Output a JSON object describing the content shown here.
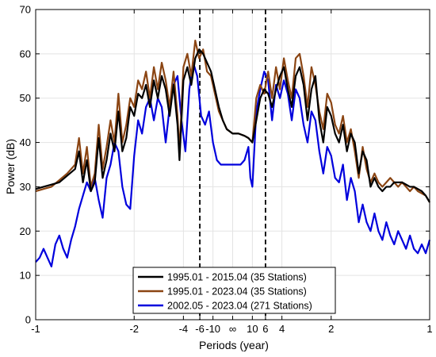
{
  "chart_data": {
    "type": "line",
    "title": "",
    "xlabel": "Periods (year)",
    "ylabel": "Power (dB)",
    "ylim": [
      0,
      70
    ],
    "yticks": [
      0,
      10,
      20,
      30,
      40,
      50,
      60,
      70
    ],
    "xlim": [
      -1,
      1
    ],
    "x_axis_scale": "frequency (1 / period in cycles per year); tick labels show the period",
    "xticks": [
      {
        "value": -1,
        "label": "-1"
      },
      {
        "value": -0.5,
        "label": "-2"
      },
      {
        "value": -0.25,
        "label": "-4"
      },
      {
        "value": -0.1667,
        "label": "-6"
      },
      {
        "value": -0.1,
        "label": "-10"
      },
      {
        "value": 0,
        "label": "∞"
      },
      {
        "value": 0.1,
        "label": "10"
      },
      {
        "value": 0.1667,
        "label": "6"
      },
      {
        "value": 0.25,
        "label": "4"
      },
      {
        "value": 0.5,
        "label": "2"
      },
      {
        "value": 1,
        "label": "1"
      }
    ],
    "grid": true,
    "reference_lines": [
      {
        "x": -0.1667,
        "style": "dashed",
        "color": "#000000"
      },
      {
        "x": 0.1667,
        "style": "dashed",
        "color": "#000000"
      }
    ],
    "legend": {
      "position": "bottom-center",
      "entries": [
        {
          "label": "1995.01 - 2015.04 (35 Stations)",
          "color": "#000000"
        },
        {
          "label": "1995.01 - 2023.04 (35 Stations)",
          "color": "#8b4513"
        },
        {
          "label": "2002.05 - 2023.04 (271 Stations)",
          "color": "#0000dd"
        }
      ]
    },
    "series": [
      {
        "name": "1995.01 - 2015.04 (35 Stations)",
        "color": "#000000",
        "points": [
          [
            -1,
            29.5
          ],
          [
            -0.96,
            30
          ],
          [
            -0.92,
            30.5
          ],
          [
            -0.88,
            31
          ],
          [
            -0.84,
            32.5
          ],
          [
            -0.8,
            34
          ],
          [
            -0.78,
            38
          ],
          [
            -0.76,
            31
          ],
          [
            -0.74,
            36
          ],
          [
            -0.72,
            29
          ],
          [
            -0.7,
            31
          ],
          [
            -0.68,
            41
          ],
          [
            -0.66,
            32
          ],
          [
            -0.64,
            36
          ],
          [
            -0.62,
            42
          ],
          [
            -0.6,
            38
          ],
          [
            -0.58,
            47
          ],
          [
            -0.56,
            38
          ],
          [
            -0.54,
            41
          ],
          [
            -0.52,
            48
          ],
          [
            -0.5,
            46
          ],
          [
            -0.48,
            51
          ],
          [
            -0.46,
            50
          ],
          [
            -0.44,
            53
          ],
          [
            -0.42,
            48
          ],
          [
            -0.4,
            54
          ],
          [
            -0.38,
            50
          ],
          [
            -0.36,
            55
          ],
          [
            -0.34,
            52
          ],
          [
            -0.32,
            46
          ],
          [
            -0.3,
            53
          ],
          [
            -0.28,
            44
          ],
          [
            -0.27,
            36
          ],
          [
            -0.25,
            54
          ],
          [
            -0.23,
            57
          ],
          [
            -0.21,
            53
          ],
          [
            -0.19,
            59
          ],
          [
            -0.17,
            61
          ],
          [
            -0.15,
            60
          ],
          [
            -0.13,
            58
          ],
          [
            -0.11,
            56
          ],
          [
            -0.09,
            52
          ],
          [
            -0.07,
            48
          ],
          [
            -0.05,
            45
          ],
          [
            -0.03,
            43
          ],
          [
            0,
            42
          ],
          [
            0.03,
            42
          ],
          [
            0.06,
            41.5
          ],
          [
            0.08,
            41
          ],
          [
            0.1,
            40
          ],
          [
            0.12,
            45
          ],
          [
            0.14,
            50
          ],
          [
            0.16,
            52
          ],
          [
            0.18,
            51
          ],
          [
            0.2,
            48
          ],
          [
            0.22,
            52
          ],
          [
            0.24,
            55
          ],
          [
            0.26,
            57
          ],
          [
            0.28,
            52
          ],
          [
            0.3,
            48
          ],
          [
            0.32,
            55
          ],
          [
            0.34,
            57
          ],
          [
            0.36,
            53
          ],
          [
            0.38,
            45
          ],
          [
            0.4,
            52
          ],
          [
            0.42,
            55
          ],
          [
            0.44,
            45
          ],
          [
            0.46,
            40
          ],
          [
            0.48,
            48
          ],
          [
            0.5,
            46
          ],
          [
            0.52,
            42
          ],
          [
            0.54,
            40
          ],
          [
            0.56,
            44
          ],
          [
            0.58,
            38
          ],
          [
            0.6,
            42
          ],
          [
            0.62,
            40
          ],
          [
            0.64,
            33
          ],
          [
            0.66,
            38
          ],
          [
            0.68,
            36
          ],
          [
            0.7,
            30
          ],
          [
            0.72,
            32
          ],
          [
            0.74,
            30
          ],
          [
            0.76,
            29
          ],
          [
            0.78,
            30
          ],
          [
            0.8,
            30
          ],
          [
            0.82,
            31
          ],
          [
            0.84,
            31
          ],
          [
            0.86,
            31
          ],
          [
            0.88,
            30.5
          ],
          [
            0.9,
            30
          ],
          [
            0.92,
            30
          ],
          [
            0.94,
            29.5
          ],
          [
            0.96,
            29
          ],
          [
            0.98,
            28
          ],
          [
            1,
            26.5
          ]
        ]
      },
      {
        "name": "1995.01 - 2023.04 (35 Stations)",
        "color": "#8b4513",
        "points": [
          [
            -1,
            29
          ],
          [
            -0.96,
            29.5
          ],
          [
            -0.92,
            30
          ],
          [
            -0.88,
            31.5
          ],
          [
            -0.84,
            33
          ],
          [
            -0.8,
            35
          ],
          [
            -0.78,
            41
          ],
          [
            -0.76,
            33
          ],
          [
            -0.74,
            39
          ],
          [
            -0.72,
            30
          ],
          [
            -0.7,
            33
          ],
          [
            -0.68,
            44
          ],
          [
            -0.66,
            34
          ],
          [
            -0.64,
            39
          ],
          [
            -0.62,
            45
          ],
          [
            -0.6,
            40
          ],
          [
            -0.58,
            51
          ],
          [
            -0.56,
            40
          ],
          [
            -0.54,
            44
          ],
          [
            -0.52,
            50
          ],
          [
            -0.5,
            48
          ],
          [
            -0.48,
            54
          ],
          [
            -0.46,
            52
          ],
          [
            -0.44,
            56
          ],
          [
            -0.42,
            50
          ],
          [
            -0.4,
            57
          ],
          [
            -0.38,
            52
          ],
          [
            -0.36,
            58
          ],
          [
            -0.34,
            54
          ],
          [
            -0.32,
            48
          ],
          [
            -0.3,
            56
          ],
          [
            -0.28,
            46
          ],
          [
            -0.27,
            38
          ],
          [
            -0.25,
            57
          ],
          [
            -0.23,
            60
          ],
          [
            -0.21,
            55
          ],
          [
            -0.19,
            63
          ],
          [
            -0.17,
            59
          ],
          [
            -0.15,
            61
          ],
          [
            -0.13,
            56
          ],
          [
            -0.11,
            55
          ],
          [
            -0.09,
            51
          ],
          [
            -0.07,
            47
          ],
          [
            -0.05,
            45
          ],
          [
            -0.03,
            43
          ],
          [
            0,
            42
          ],
          [
            0.03,
            42
          ],
          [
            0.06,
            41.5
          ],
          [
            0.08,
            41
          ],
          [
            0.1,
            40
          ],
          [
            0.12,
            50
          ],
          [
            0.14,
            53
          ],
          [
            0.16,
            51
          ],
          [
            0.18,
            56
          ],
          [
            0.2,
            50
          ],
          [
            0.22,
            57
          ],
          [
            0.24,
            52
          ],
          [
            0.26,
            59
          ],
          [
            0.28,
            54
          ],
          [
            0.3,
            50
          ],
          [
            0.32,
            59
          ],
          [
            0.34,
            60
          ],
          [
            0.36,
            55
          ],
          [
            0.38,
            48
          ],
          [
            0.4,
            57
          ],
          [
            0.42,
            53
          ],
          [
            0.44,
            47
          ],
          [
            0.46,
            43
          ],
          [
            0.48,
            51
          ],
          [
            0.5,
            49
          ],
          [
            0.52,
            44
          ],
          [
            0.54,
            42
          ],
          [
            0.56,
            46
          ],
          [
            0.58,
            40
          ],
          [
            0.6,
            43
          ],
          [
            0.62,
            38
          ],
          [
            0.64,
            32
          ],
          [
            0.66,
            39
          ],
          [
            0.68,
            34
          ],
          [
            0.7,
            31
          ],
          [
            0.72,
            33
          ],
          [
            0.74,
            31
          ],
          [
            0.76,
            30
          ],
          [
            0.78,
            31
          ],
          [
            0.8,
            32
          ],
          [
            0.82,
            31
          ],
          [
            0.84,
            30
          ],
          [
            0.86,
            31
          ],
          [
            0.88,
            30
          ],
          [
            0.9,
            29
          ],
          [
            0.92,
            30
          ],
          [
            0.94,
            29
          ],
          [
            0.96,
            28.5
          ],
          [
            0.98,
            28
          ],
          [
            1,
            26.5
          ]
        ]
      },
      {
        "name": "2002.05 - 2023.04 (271 Stations)",
        "color": "#0000dd",
        "points": [
          [
            -1,
            13
          ],
          [
            -0.98,
            14
          ],
          [
            -0.96,
            16
          ],
          [
            -0.94,
            14
          ],
          [
            -0.92,
            12
          ],
          [
            -0.9,
            17
          ],
          [
            -0.88,
            19
          ],
          [
            -0.86,
            16
          ],
          [
            -0.84,
            14
          ],
          [
            -0.82,
            18
          ],
          [
            -0.8,
            21
          ],
          [
            -0.78,
            25
          ],
          [
            -0.76,
            28
          ],
          [
            -0.74,
            31
          ],
          [
            -0.72,
            29
          ],
          [
            -0.7,
            32
          ],
          [
            -0.68,
            27
          ],
          [
            -0.66,
            23
          ],
          [
            -0.64,
            32
          ],
          [
            -0.62,
            35
          ],
          [
            -0.6,
            40
          ],
          [
            -0.58,
            38
          ],
          [
            -0.56,
            30
          ],
          [
            -0.54,
            26
          ],
          [
            -0.52,
            25
          ],
          [
            -0.5,
            37
          ],
          [
            -0.48,
            45
          ],
          [
            -0.46,
            42
          ],
          [
            -0.44,
            48
          ],
          [
            -0.42,
            50
          ],
          [
            -0.4,
            45
          ],
          [
            -0.38,
            50
          ],
          [
            -0.36,
            48
          ],
          [
            -0.34,
            40
          ],
          [
            -0.32,
            48
          ],
          [
            -0.3,
            53
          ],
          [
            -0.28,
            55
          ],
          [
            -0.26,
            45
          ],
          [
            -0.24,
            38
          ],
          [
            -0.22,
            52
          ],
          [
            -0.2,
            58
          ],
          [
            -0.18,
            55
          ],
          [
            -0.16,
            46
          ],
          [
            -0.14,
            44
          ],
          [
            -0.12,
            47
          ],
          [
            -0.1,
            40
          ],
          [
            -0.08,
            36
          ],
          [
            -0.06,
            35
          ],
          [
            -0.04,
            35
          ],
          [
            0,
            35
          ],
          [
            0.04,
            35
          ],
          [
            0.06,
            36
          ],
          [
            0.08,
            39
          ],
          [
            0.09,
            32
          ],
          [
            0.1,
            30
          ],
          [
            0.12,
            47
          ],
          [
            0.14,
            52
          ],
          [
            0.16,
            56
          ],
          [
            0.18,
            54
          ],
          [
            0.2,
            45
          ],
          [
            0.22,
            53
          ],
          [
            0.24,
            50
          ],
          [
            0.26,
            54
          ],
          [
            0.28,
            51
          ],
          [
            0.3,
            45
          ],
          [
            0.32,
            52
          ],
          [
            0.34,
            50
          ],
          [
            0.36,
            44
          ],
          [
            0.38,
            40
          ],
          [
            0.4,
            47
          ],
          [
            0.42,
            45
          ],
          [
            0.44,
            38
          ],
          [
            0.46,
            33
          ],
          [
            0.48,
            39
          ],
          [
            0.5,
            37
          ],
          [
            0.52,
            32
          ],
          [
            0.54,
            31
          ],
          [
            0.56,
            35
          ],
          [
            0.58,
            27
          ],
          [
            0.6,
            32
          ],
          [
            0.62,
            29
          ],
          [
            0.64,
            22
          ],
          [
            0.66,
            26
          ],
          [
            0.68,
            22
          ],
          [
            0.7,
            20
          ],
          [
            0.72,
            24
          ],
          [
            0.74,
            20
          ],
          [
            0.76,
            18
          ],
          [
            0.78,
            22
          ],
          [
            0.8,
            19
          ],
          [
            0.82,
            17
          ],
          [
            0.84,
            20
          ],
          [
            0.86,
            18
          ],
          [
            0.88,
            16
          ],
          [
            0.9,
            19
          ],
          [
            0.92,
            16
          ],
          [
            0.94,
            15
          ],
          [
            0.96,
            17
          ],
          [
            0.98,
            15
          ],
          [
            1,
            18
          ]
        ]
      }
    ]
  }
}
